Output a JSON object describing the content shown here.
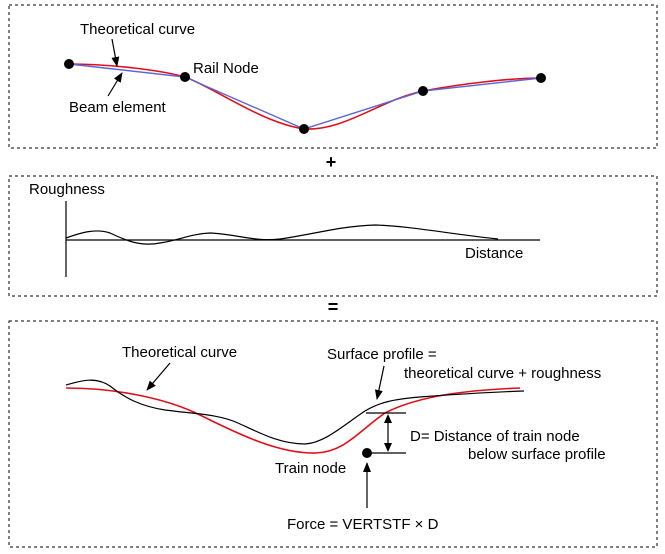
{
  "panels": {
    "top": {
      "theoretical_curve": "Theoretical curve",
      "rail_node": "Rail Node",
      "beam_element": "Beam element"
    },
    "middle": {
      "roughness": "Roughness",
      "distance": "Distance"
    },
    "bottom": {
      "theoretical_curve": "Theoretical curve",
      "surface_profile_line1": "Surface profile =",
      "surface_profile_line2": "theoretical curve + roughness",
      "distance_line1": "D= Distance of train node",
      "distance_line2": "below surface profile",
      "train_node": "Train node",
      "force": "Force = VERTSTF × D"
    }
  },
  "operators": {
    "plus": "+",
    "equals": "="
  },
  "colors": {
    "theoretical_curve": "#e0101a",
    "beam_element": "#5a66d6",
    "roughness": "#000000"
  }
}
